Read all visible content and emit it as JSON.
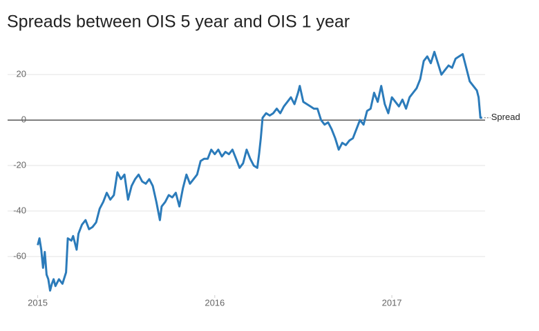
{
  "chart_data": {
    "type": "line",
    "title": "Spreads between OIS 5 year and OIS 1 year",
    "x": [
      2015.0,
      2015.01,
      2015.02,
      2015.03,
      2015.04,
      2015.05,
      2015.06,
      2015.07,
      2015.08,
      2015.09,
      2015.1,
      2015.12,
      2015.14,
      2015.16,
      2015.17,
      2015.19,
      2015.2,
      2015.22,
      2015.23,
      2015.25,
      2015.27,
      2015.29,
      2015.31,
      2015.33,
      2015.35,
      2015.37,
      2015.39,
      2015.41,
      2015.43,
      2015.45,
      2015.47,
      2015.49,
      2015.51,
      2015.53,
      2015.55,
      2015.57,
      2015.59,
      2015.61,
      2015.63,
      2015.65,
      2015.67,
      2015.69,
      2015.7,
      2015.72,
      2015.74,
      2015.76,
      2015.78,
      2015.8,
      2015.82,
      2015.84,
      2015.86,
      2015.88,
      2015.9,
      2015.92,
      2015.94,
      2015.96,
      2015.98,
      2016.0,
      2016.02,
      2016.04,
      2016.06,
      2016.08,
      2016.1,
      2016.12,
      2016.14,
      2016.16,
      2016.18,
      2016.2,
      2016.22,
      2016.24,
      2016.25,
      2016.26,
      2016.27,
      2016.29,
      2016.31,
      2016.33,
      2016.35,
      2016.37,
      2016.39,
      2016.41,
      2016.43,
      2016.45,
      2016.47,
      2016.48,
      2016.5,
      2016.52,
      2016.54,
      2016.56,
      2016.58,
      2016.6,
      2016.62,
      2016.64,
      2016.66,
      2016.68,
      2016.7,
      2016.72,
      2016.74,
      2016.76,
      2016.78,
      2016.8,
      2016.82,
      2016.84,
      2016.86,
      2016.88,
      2016.9,
      2016.92,
      2016.94,
      2016.96,
      2016.98,
      2017.0,
      2017.02,
      2017.04,
      2017.06,
      2017.08,
      2017.1,
      2017.12,
      2017.14,
      2017.16,
      2017.18,
      2017.2,
      2017.22,
      2017.24,
      2017.26,
      2017.28,
      2017.3,
      2017.32,
      2017.34,
      2017.36,
      2017.38,
      2017.4,
      2017.42,
      2017.44,
      2017.46,
      2017.48,
      2017.49,
      2017.5,
      2017.51
    ],
    "series": [
      {
        "name": "Spread",
        "color": "#2b7bba",
        "values": [
          -55,
          -52,
          -57,
          -65,
          -58,
          -68,
          -70,
          -75,
          -72,
          -70,
          -73,
          -70,
          -72,
          -67,
          -52,
          -53,
          -51,
          -57,
          -50,
          -46,
          -44,
          -48,
          -47,
          -45,
          -39,
          -36,
          -32,
          -35,
          -33,
          -23,
          -26,
          -24,
          -35,
          -29,
          -26,
          -24,
          -27,
          -28,
          -26,
          -29,
          -36,
          -44,
          -38,
          -36,
          -33,
          -34,
          -32,
          -38,
          -30,
          -24,
          -28,
          -26,
          -24,
          -18,
          -17,
          -17,
          -13,
          -15,
          -13,
          -16,
          -14,
          -15,
          -13,
          -17,
          -21,
          -19,
          -13,
          -17,
          -20,
          -21,
          -15,
          -8,
          1,
          3,
          2,
          3,
          5,
          3,
          6,
          8,
          10,
          7,
          12,
          15,
          8,
          7,
          6,
          5,
          5,
          0,
          -2,
          -1,
          -4,
          -8,
          -13,
          -10,
          -11,
          -9,
          -8,
          -4,
          0,
          -2,
          4,
          5,
          12,
          8,
          15,
          7,
          3,
          10,
          8,
          6,
          9,
          5,
          10,
          12,
          14,
          18,
          26,
          28,
          25,
          30,
          25,
          20,
          22,
          24,
          23,
          27,
          28,
          29,
          23,
          17,
          15,
          13,
          10,
          1,
          1
        ]
      }
    ],
    "xlim": [
      2014.83,
      2017.55
    ],
    "xticks": [
      2015,
      2016,
      2017
    ],
    "ylim": [
      -77,
      34
    ],
    "yticks": [
      -60,
      -40,
      -20,
      0,
      20
    ],
    "grid": true
  }
}
